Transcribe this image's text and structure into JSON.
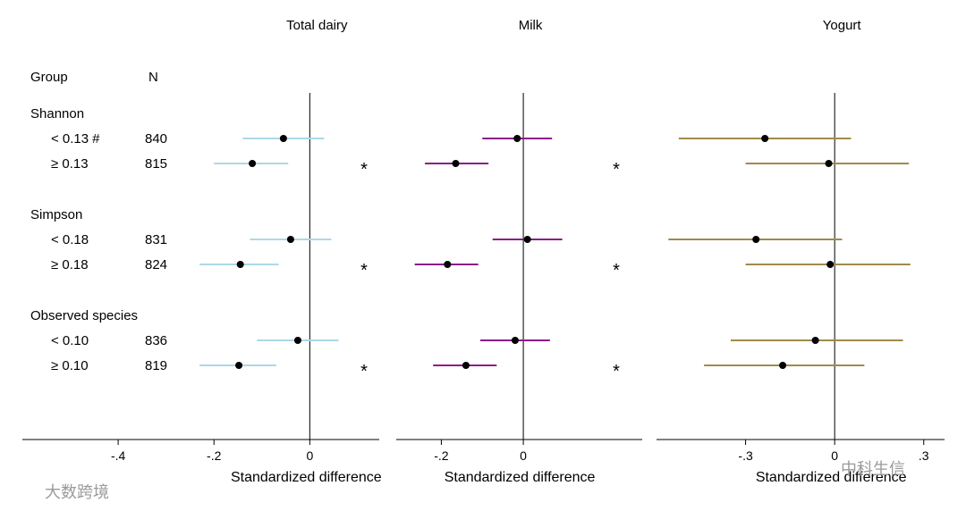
{
  "chart_data": {
    "type": "forest",
    "header": {
      "group_label": "Group",
      "n_label": "N"
    },
    "groups": [
      {
        "name": "Shannon",
        "rows": [
          {
            "label": "< 0.13",
            "marker": "#",
            "n": "840",
            "significant": false
          },
          {
            "label": "≥ 0.13",
            "marker": "",
            "n": "815",
            "significant": true
          }
        ]
      },
      {
        "name": "Simpson",
        "rows": [
          {
            "label": "< 0.18",
            "marker": "",
            "n": "831",
            "significant": false
          },
          {
            "label": "≥ 0.18",
            "marker": "",
            "n": "824",
            "significant": true
          }
        ]
      },
      {
        "name": "Observed species",
        "rows": [
          {
            "label": "< 0.10",
            "marker": "",
            "n": "836",
            "significant": false
          },
          {
            "label": "≥ 0.10",
            "marker": "",
            "n": "819",
            "significant": true
          }
        ]
      }
    ],
    "significance_marker": "*",
    "panels": [
      {
        "title": "Total dairy",
        "xlabel": "Standardized difference",
        "xlim": [
          -0.6,
          0.145
        ],
        "ticks": [
          -0.4,
          -0.2,
          0
        ],
        "tick_labels": [
          "-.4",
          "-.2",
          "0"
        ],
        "color": "#add8e6",
        "show_stars": true,
        "estimates": [
          -0.055,
          -0.12,
          -0.04,
          -0.145,
          -0.025,
          -0.148
        ],
        "lower": [
          -0.14,
          -0.2,
          -0.125,
          -0.23,
          -0.11,
          -0.23
        ],
        "upper": [
          0.03,
          -0.045,
          0.045,
          -0.065,
          0.06,
          -0.07
        ]
      },
      {
        "title": "Milk",
        "xlabel": "Standardized difference",
        "xlim": [
          -0.31,
          0.29
        ],
        "ticks": [
          -0.2,
          0
        ],
        "tick_labels": [
          "-.2",
          "0"
        ],
        "color": "#8b1c8b",
        "show_stars": true,
        "estimates": [
          -0.015,
          -0.165,
          0.01,
          -0.185,
          -0.02,
          -0.14
        ],
        "lower": [
          -0.1,
          -0.24,
          -0.075,
          -0.265,
          -0.105,
          -0.22
        ],
        "upper": [
          0.07,
          -0.085,
          0.095,
          -0.11,
          0.065,
          -0.065
        ]
      },
      {
        "title": "Yogurt",
        "xlabel": "Standardized difference",
        "xlim": [
          -0.6,
          0.37
        ],
        "ticks": [
          -0.3,
          0,
          0.3
        ],
        "tick_labels": [
          "-.3",
          "0",
          ".3"
        ],
        "color": "#a08a4a",
        "show_stars": false,
        "estimates": [
          -0.235,
          -0.02,
          -0.265,
          -0.015,
          -0.065,
          -0.175
        ],
        "lower": [
          -0.525,
          -0.3,
          -0.56,
          -0.3,
          -0.35,
          -0.44
        ],
        "upper": [
          0.055,
          0.25,
          0.025,
          0.255,
          0.23,
          0.1
        ]
      }
    ]
  },
  "watermarks": {
    "left": "大数跨境",
    "right": "中科生信"
  }
}
